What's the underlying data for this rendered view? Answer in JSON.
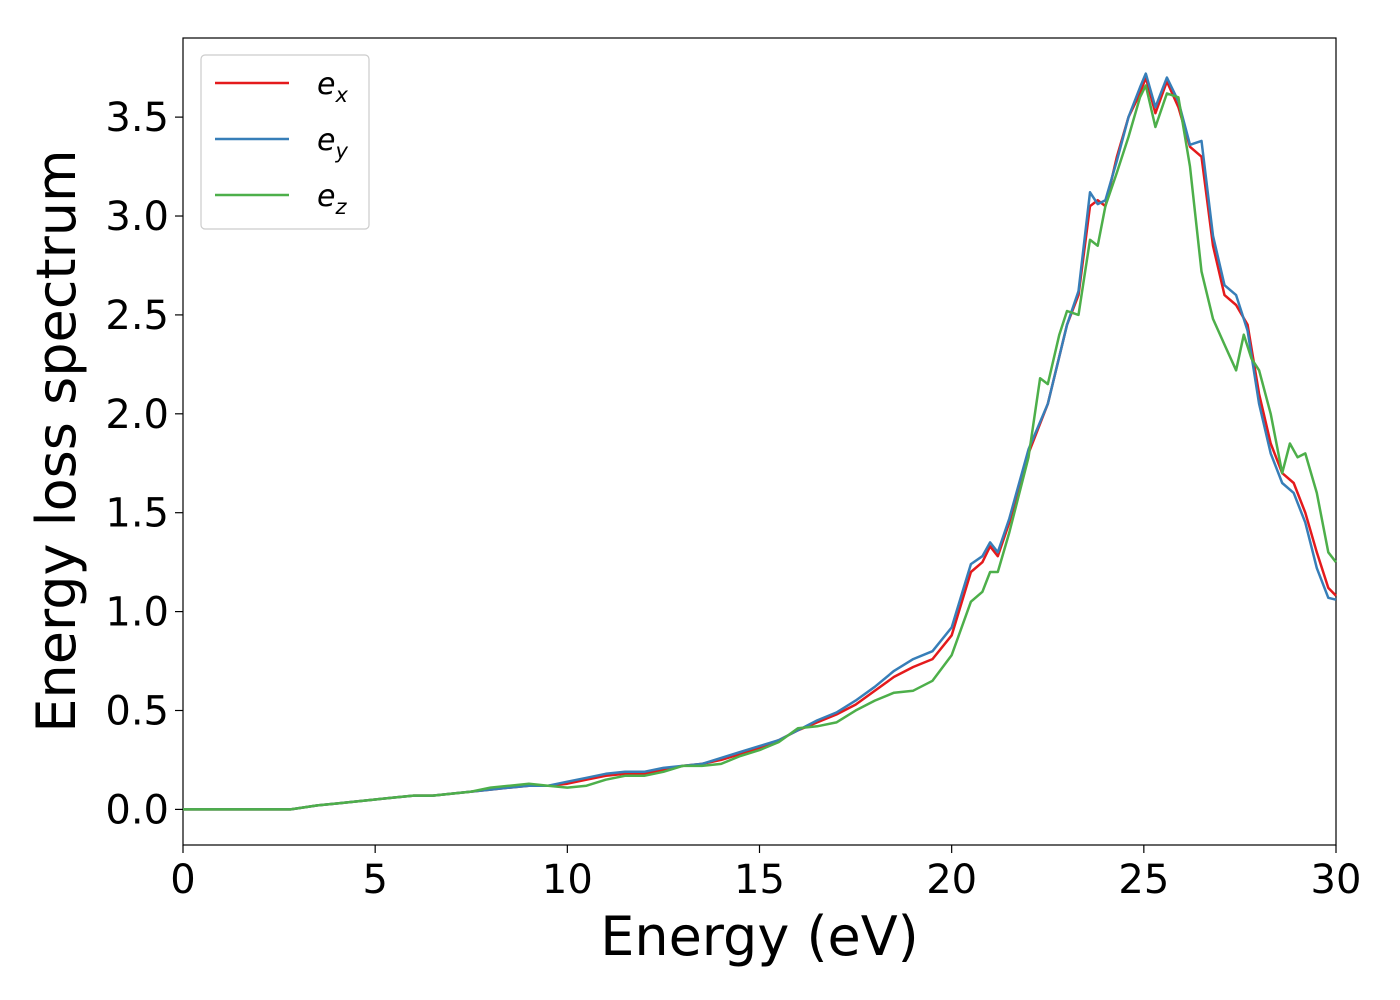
{
  "chart_data": {
    "type": "line",
    "title": "",
    "xlabel": "Energy (eV)",
    "ylabel": "Energy loss spectrum",
    "xlim": [
      0,
      30
    ],
    "ylim": [
      -0.18,
      3.9
    ],
    "xticks": [
      0,
      5,
      10,
      15,
      20,
      25,
      30
    ],
    "yticks": [
      0.0,
      0.5,
      1.0,
      1.5,
      2.0,
      2.5,
      3.0,
      3.5
    ],
    "xtick_labels": [
      "0",
      "5",
      "10",
      "15",
      "20",
      "25",
      "30"
    ],
    "ytick_labels": [
      "0.0",
      "0.5",
      "1.0",
      "1.5",
      "2.0",
      "2.5",
      "3.0",
      "3.5"
    ],
    "grid": false,
    "legend_position": "top-left",
    "series": [
      {
        "name": "e",
        "subscript": "x",
        "color": "#e41a1c",
        "x": [
          0,
          1,
          2,
          2.8,
          3.5,
          4,
          4.5,
          5,
          5.5,
          6,
          6.5,
          7,
          7.5,
          8,
          8.5,
          9,
          9.5,
          10,
          10.5,
          11,
          11.5,
          12,
          12.5,
          13,
          13.5,
          14,
          14.5,
          15,
          15.5,
          16,
          16.5,
          17,
          17.5,
          18,
          18.5,
          19,
          19.5,
          20,
          20.5,
          20.8,
          21,
          21.2,
          21.5,
          22,
          22.5,
          23,
          23.3,
          23.6,
          23.8,
          24,
          24.3,
          24.6,
          24.9,
          25.05,
          25.3,
          25.6,
          25.9,
          26.2,
          26.5,
          26.8,
          27.1,
          27.4,
          27.7,
          28,
          28.3,
          28.6,
          28.9,
          29.2,
          29.5,
          29.8,
          30
        ],
        "y": [
          0,
          0,
          0,
          0,
          0.02,
          0.03,
          0.04,
          0.05,
          0.06,
          0.07,
          0.07,
          0.08,
          0.09,
          0.1,
          0.11,
          0.12,
          0.12,
          0.13,
          0.15,
          0.17,
          0.18,
          0.18,
          0.2,
          0.22,
          0.23,
          0.25,
          0.28,
          0.31,
          0.35,
          0.4,
          0.44,
          0.48,
          0.53,
          0.6,
          0.67,
          0.72,
          0.76,
          0.88,
          1.2,
          1.25,
          1.33,
          1.28,
          1.45,
          1.8,
          2.05,
          2.45,
          2.6,
          3.05,
          3.08,
          3.05,
          3.3,
          3.5,
          3.62,
          3.7,
          3.52,
          3.68,
          3.55,
          3.35,
          3.3,
          2.85,
          2.6,
          2.55,
          2.45,
          2.1,
          1.85,
          1.7,
          1.65,
          1.5,
          1.3,
          1.12,
          1.08
        ]
      },
      {
        "name": "e",
        "subscript": "y",
        "color": "#377eb8",
        "x": [
          0,
          1,
          2,
          2.8,
          3.5,
          4,
          4.5,
          5,
          5.5,
          6,
          6.5,
          7,
          7.5,
          8,
          8.5,
          9,
          9.5,
          10,
          10.5,
          11,
          11.5,
          12,
          12.5,
          13,
          13.5,
          14,
          14.5,
          15,
          15.5,
          16,
          16.5,
          17,
          17.5,
          18,
          18.5,
          19,
          19.5,
          20,
          20.5,
          20.8,
          21,
          21.2,
          21.5,
          22,
          22.5,
          23,
          23.3,
          23.6,
          23.8,
          24,
          24.3,
          24.6,
          24.9,
          25.05,
          25.3,
          25.6,
          25.9,
          26.2,
          26.5,
          26.8,
          27.1,
          27.4,
          27.7,
          28,
          28.3,
          28.6,
          28.9,
          29.2,
          29.5,
          29.8,
          30
        ],
        "y": [
          0,
          0,
          0,
          0,
          0.02,
          0.03,
          0.04,
          0.05,
          0.06,
          0.07,
          0.07,
          0.08,
          0.09,
          0.1,
          0.11,
          0.12,
          0.12,
          0.14,
          0.16,
          0.18,
          0.19,
          0.19,
          0.21,
          0.22,
          0.23,
          0.26,
          0.29,
          0.32,
          0.35,
          0.4,
          0.45,
          0.49,
          0.55,
          0.62,
          0.7,
          0.76,
          0.8,
          0.92,
          1.24,
          1.28,
          1.35,
          1.3,
          1.47,
          1.82,
          2.05,
          2.45,
          2.62,
          3.12,
          3.06,
          3.08,
          3.28,
          3.5,
          3.65,
          3.72,
          3.55,
          3.7,
          3.58,
          3.36,
          3.38,
          2.9,
          2.65,
          2.6,
          2.42,
          2.05,
          1.8,
          1.65,
          1.6,
          1.45,
          1.22,
          1.07,
          1.06
        ]
      },
      {
        "name": "e",
        "subscript": "z",
        "color": "#4daf4a",
        "x": [
          0,
          1,
          2,
          2.8,
          3.5,
          4,
          4.5,
          5,
          5.5,
          6,
          6.5,
          7,
          7.5,
          8,
          8.5,
          9,
          9.5,
          10,
          10.5,
          11,
          11.5,
          12,
          12.5,
          13,
          13.5,
          14,
          14.5,
          15,
          15.5,
          16,
          16.5,
          17,
          17.5,
          18,
          18.5,
          19,
          19.5,
          20,
          20.5,
          20.8,
          21,
          21.2,
          21.5,
          22,
          22.3,
          22.5,
          22.8,
          23,
          23.3,
          23.6,
          23.8,
          24,
          24.3,
          24.6,
          24.9,
          25.05,
          25.3,
          25.6,
          25.9,
          26.2,
          26.5,
          26.8,
          27.1,
          27.4,
          27.6,
          27.8,
          28,
          28.3,
          28.6,
          28.8,
          29,
          29.2,
          29.5,
          29.8,
          30
        ],
        "y": [
          0,
          0,
          0,
          0,
          0.02,
          0.03,
          0.04,
          0.05,
          0.06,
          0.07,
          0.07,
          0.08,
          0.09,
          0.11,
          0.12,
          0.13,
          0.12,
          0.11,
          0.12,
          0.15,
          0.17,
          0.17,
          0.19,
          0.22,
          0.22,
          0.23,
          0.27,
          0.3,
          0.34,
          0.41,
          0.42,
          0.44,
          0.5,
          0.55,
          0.59,
          0.6,
          0.65,
          0.78,
          1.05,
          1.1,
          1.2,
          1.2,
          1.4,
          1.78,
          2.18,
          2.15,
          2.4,
          2.52,
          2.5,
          2.88,
          2.85,
          3.05,
          3.22,
          3.4,
          3.6,
          3.66,
          3.45,
          3.62,
          3.6,
          3.25,
          2.72,
          2.48,
          2.35,
          2.22,
          2.4,
          2.28,
          2.22,
          2.0,
          1.7,
          1.85,
          1.78,
          1.8,
          1.6,
          1.3,
          1.25
        ]
      }
    ]
  }
}
